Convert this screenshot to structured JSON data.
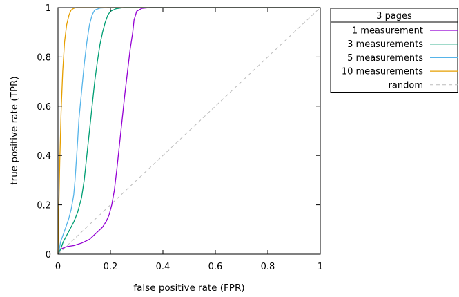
{
  "chart_data": {
    "type": "line",
    "title": "",
    "xlabel": "false positive rate (FPR)",
    "ylabel": "true positive rate (TPR)",
    "xlim": [
      0,
      1
    ],
    "ylim": [
      0,
      1
    ],
    "x_ticks": [
      "0",
      "0.2",
      "0.4",
      "0.6",
      "0.8",
      "1"
    ],
    "y_ticks": [
      "0",
      "0.2",
      "0.4",
      "0.6",
      "0.8",
      "1"
    ],
    "grid": false,
    "legend": {
      "title": "3 pages",
      "placement": "outside-top-right"
    },
    "series": [
      {
        "name": "1 measurement",
        "color": "#9400d3",
        "dash": "solid",
        "points": [
          [
            0,
            0
          ],
          [
            0.01,
            0.02
          ],
          [
            0.03,
            0.03
          ],
          [
            0.06,
            0.035
          ],
          [
            0.09,
            0.045
          ],
          [
            0.12,
            0.06
          ],
          [
            0.135,
            0.075
          ],
          [
            0.15,
            0.09
          ],
          [
            0.17,
            0.11
          ],
          [
            0.185,
            0.135
          ],
          [
            0.195,
            0.16
          ],
          [
            0.205,
            0.2
          ],
          [
            0.215,
            0.26
          ],
          [
            0.225,
            0.35
          ],
          [
            0.235,
            0.45
          ],
          [
            0.245,
            0.55
          ],
          [
            0.255,
            0.65
          ],
          [
            0.265,
            0.74
          ],
          [
            0.275,
            0.83
          ],
          [
            0.285,
            0.9
          ],
          [
            0.29,
            0.95
          ],
          [
            0.3,
            0.985
          ],
          [
            0.32,
            0.997
          ],
          [
            0.35,
            1.0
          ],
          [
            1,
            1.0
          ]
        ]
      },
      {
        "name": "3 measurements",
        "color": "#009e73",
        "dash": "solid",
        "points": [
          [
            0,
            0
          ],
          [
            0.01,
            0.02
          ],
          [
            0.02,
            0.05
          ],
          [
            0.035,
            0.08
          ],
          [
            0.05,
            0.11
          ],
          [
            0.06,
            0.13
          ],
          [
            0.075,
            0.17
          ],
          [
            0.09,
            0.23
          ],
          [
            0.1,
            0.3
          ],
          [
            0.11,
            0.4
          ],
          [
            0.12,
            0.5
          ],
          [
            0.13,
            0.6
          ],
          [
            0.14,
            0.7
          ],
          [
            0.15,
            0.78
          ],
          [
            0.16,
            0.85
          ],
          [
            0.17,
            0.9
          ],
          [
            0.18,
            0.94
          ],
          [
            0.19,
            0.97
          ],
          [
            0.2,
            0.985
          ],
          [
            0.22,
            0.995
          ],
          [
            0.25,
            1.0
          ],
          [
            1,
            1.0
          ]
        ]
      },
      {
        "name": "5 measurements",
        "color": "#56b4e9",
        "dash": "solid",
        "points": [
          [
            0,
            0
          ],
          [
            0.005,
            0.02
          ],
          [
            0.01,
            0.05
          ],
          [
            0.02,
            0.08
          ],
          [
            0.03,
            0.11
          ],
          [
            0.04,
            0.14
          ],
          [
            0.05,
            0.18
          ],
          [
            0.06,
            0.24
          ],
          [
            0.065,
            0.3
          ],
          [
            0.07,
            0.38
          ],
          [
            0.075,
            0.46
          ],
          [
            0.08,
            0.55
          ],
          [
            0.09,
            0.66
          ],
          [
            0.1,
            0.77
          ],
          [
            0.11,
            0.86
          ],
          [
            0.12,
            0.93
          ],
          [
            0.13,
            0.97
          ],
          [
            0.14,
            0.99
          ],
          [
            0.16,
            0.998
          ],
          [
            0.19,
            1.0
          ],
          [
            1,
            1.0
          ]
        ]
      },
      {
        "name": "10 measurements",
        "color": "#e69f00",
        "dash": "solid",
        "points": [
          [
            0,
            0
          ],
          [
            0.003,
            0.18
          ],
          [
            0.007,
            0.38
          ],
          [
            0.012,
            0.58
          ],
          [
            0.018,
            0.74
          ],
          [
            0.025,
            0.86
          ],
          [
            0.033,
            0.93
          ],
          [
            0.042,
            0.97
          ],
          [
            0.05,
            0.99
          ],
          [
            0.06,
            0.997
          ],
          [
            0.07,
            1.0
          ],
          [
            1,
            1.0
          ]
        ]
      },
      {
        "name": "random",
        "color": "#bbbbbb",
        "dash": "dashed",
        "points": [
          [
            0,
            0
          ],
          [
            1,
            1
          ]
        ]
      }
    ]
  }
}
